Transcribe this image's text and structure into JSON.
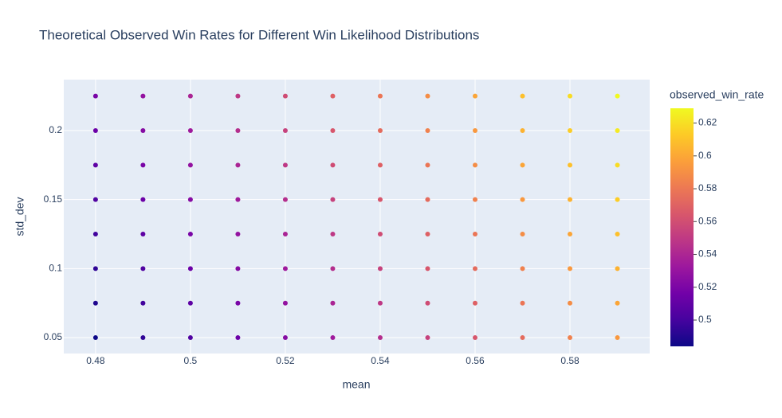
{
  "chart_data": {
    "type": "scatter",
    "title": "Theoretical Observed Win Rates for Different Win Likelihood Distributions",
    "x_label": "mean",
    "y_label": "std_dev",
    "colorbar_title": "observed_win_rate",
    "xlim": [
      0.4733,
      0.5968
    ],
    "xticks": [
      0.48,
      0.5,
      0.52,
      0.54,
      0.56,
      0.58
    ],
    "ylim": [
      0.0385,
      0.2369
    ],
    "yticks": [
      0.05,
      0.1,
      0.15,
      0.2
    ],
    "clim": [
      0.484,
      0.629
    ],
    "cticks": [
      0.5,
      0.52,
      0.54,
      0.56,
      0.58,
      0.6,
      0.62
    ],
    "colorscale": [
      "#0d0887",
      "#46039f",
      "#7201a8",
      "#9c179e",
      "#bd3786",
      "#d8576b",
      "#ed7953",
      "#fb9f3a",
      "#fdca26",
      "#f0f921"
    ],
    "grid": true,
    "x": [
      0.48,
      0.49,
      0.5,
      0.51,
      0.52,
      0.53,
      0.54,
      0.55,
      0.56,
      0.57,
      0.58,
      0.59,
      0.48,
      0.49,
      0.5,
      0.51,
      0.52,
      0.53,
      0.54,
      0.55,
      0.56,
      0.57,
      0.58,
      0.59,
      0.48,
      0.49,
      0.5,
      0.51,
      0.52,
      0.53,
      0.54,
      0.55,
      0.56,
      0.57,
      0.58,
      0.59,
      0.48,
      0.49,
      0.5,
      0.51,
      0.52,
      0.53,
      0.54,
      0.55,
      0.56,
      0.57,
      0.58,
      0.59,
      0.48,
      0.49,
      0.5,
      0.51,
      0.52,
      0.53,
      0.54,
      0.55,
      0.56,
      0.57,
      0.58,
      0.59,
      0.48,
      0.49,
      0.5,
      0.51,
      0.52,
      0.53,
      0.54,
      0.55,
      0.56,
      0.57,
      0.58,
      0.59,
      0.48,
      0.49,
      0.5,
      0.51,
      0.52,
      0.53,
      0.54,
      0.55,
      0.56,
      0.57,
      0.58,
      0.59,
      0.48,
      0.49,
      0.5,
      0.51,
      0.52,
      0.53,
      0.54,
      0.55,
      0.56,
      0.57,
      0.58,
      0.59
    ],
    "y": [
      0.05,
      0.05,
      0.05,
      0.05,
      0.05,
      0.05,
      0.05,
      0.05,
      0.05,
      0.05,
      0.05,
      0.05,
      0.075,
      0.075,
      0.075,
      0.075,
      0.075,
      0.075,
      0.075,
      0.075,
      0.075,
      0.075,
      0.075,
      0.075,
      0.1,
      0.1,
      0.1,
      0.1,
      0.1,
      0.1,
      0.1,
      0.1,
      0.1,
      0.1,
      0.1,
      0.1,
      0.125,
      0.125,
      0.125,
      0.125,
      0.125,
      0.125,
      0.125,
      0.125,
      0.125,
      0.125,
      0.125,
      0.125,
      0.15,
      0.15,
      0.15,
      0.15,
      0.15,
      0.15,
      0.15,
      0.15,
      0.15,
      0.15,
      0.15,
      0.15,
      0.175,
      0.175,
      0.175,
      0.175,
      0.175,
      0.175,
      0.175,
      0.175,
      0.175,
      0.175,
      0.175,
      0.175,
      0.2,
      0.2,
      0.2,
      0.2,
      0.2,
      0.2,
      0.2,
      0.2,
      0.2,
      0.2,
      0.2,
      0.2,
      0.225,
      0.225,
      0.225,
      0.225,
      0.225,
      0.225,
      0.225,
      0.225,
      0.225,
      0.225,
      0.225,
      0.225
    ],
    "color_values": [
      0.484,
      0.494,
      0.504,
      0.514,
      0.524,
      0.534,
      0.544,
      0.554,
      0.564,
      0.574,
      0.584,
      0.594,
      0.489,
      0.499,
      0.509,
      0.519,
      0.529,
      0.539,
      0.549,
      0.559,
      0.569,
      0.579,
      0.589,
      0.599,
      0.494,
      0.504,
      0.514,
      0.524,
      0.534,
      0.544,
      0.554,
      0.564,
      0.574,
      0.584,
      0.594,
      0.604,
      0.499,
      0.509,
      0.519,
      0.529,
      0.539,
      0.549,
      0.559,
      0.569,
      0.579,
      0.589,
      0.599,
      0.609,
      0.504,
      0.514,
      0.524,
      0.534,
      0.544,
      0.554,
      0.564,
      0.574,
      0.584,
      0.594,
      0.604,
      0.614,
      0.509,
      0.519,
      0.529,
      0.539,
      0.549,
      0.559,
      0.569,
      0.579,
      0.589,
      0.599,
      0.609,
      0.619,
      0.514,
      0.524,
      0.534,
      0.544,
      0.554,
      0.564,
      0.574,
      0.584,
      0.594,
      0.604,
      0.614,
      0.624,
      0.519,
      0.529,
      0.539,
      0.549,
      0.559,
      0.569,
      0.579,
      0.589,
      0.599,
      0.609,
      0.619,
      0.629
    ]
  }
}
